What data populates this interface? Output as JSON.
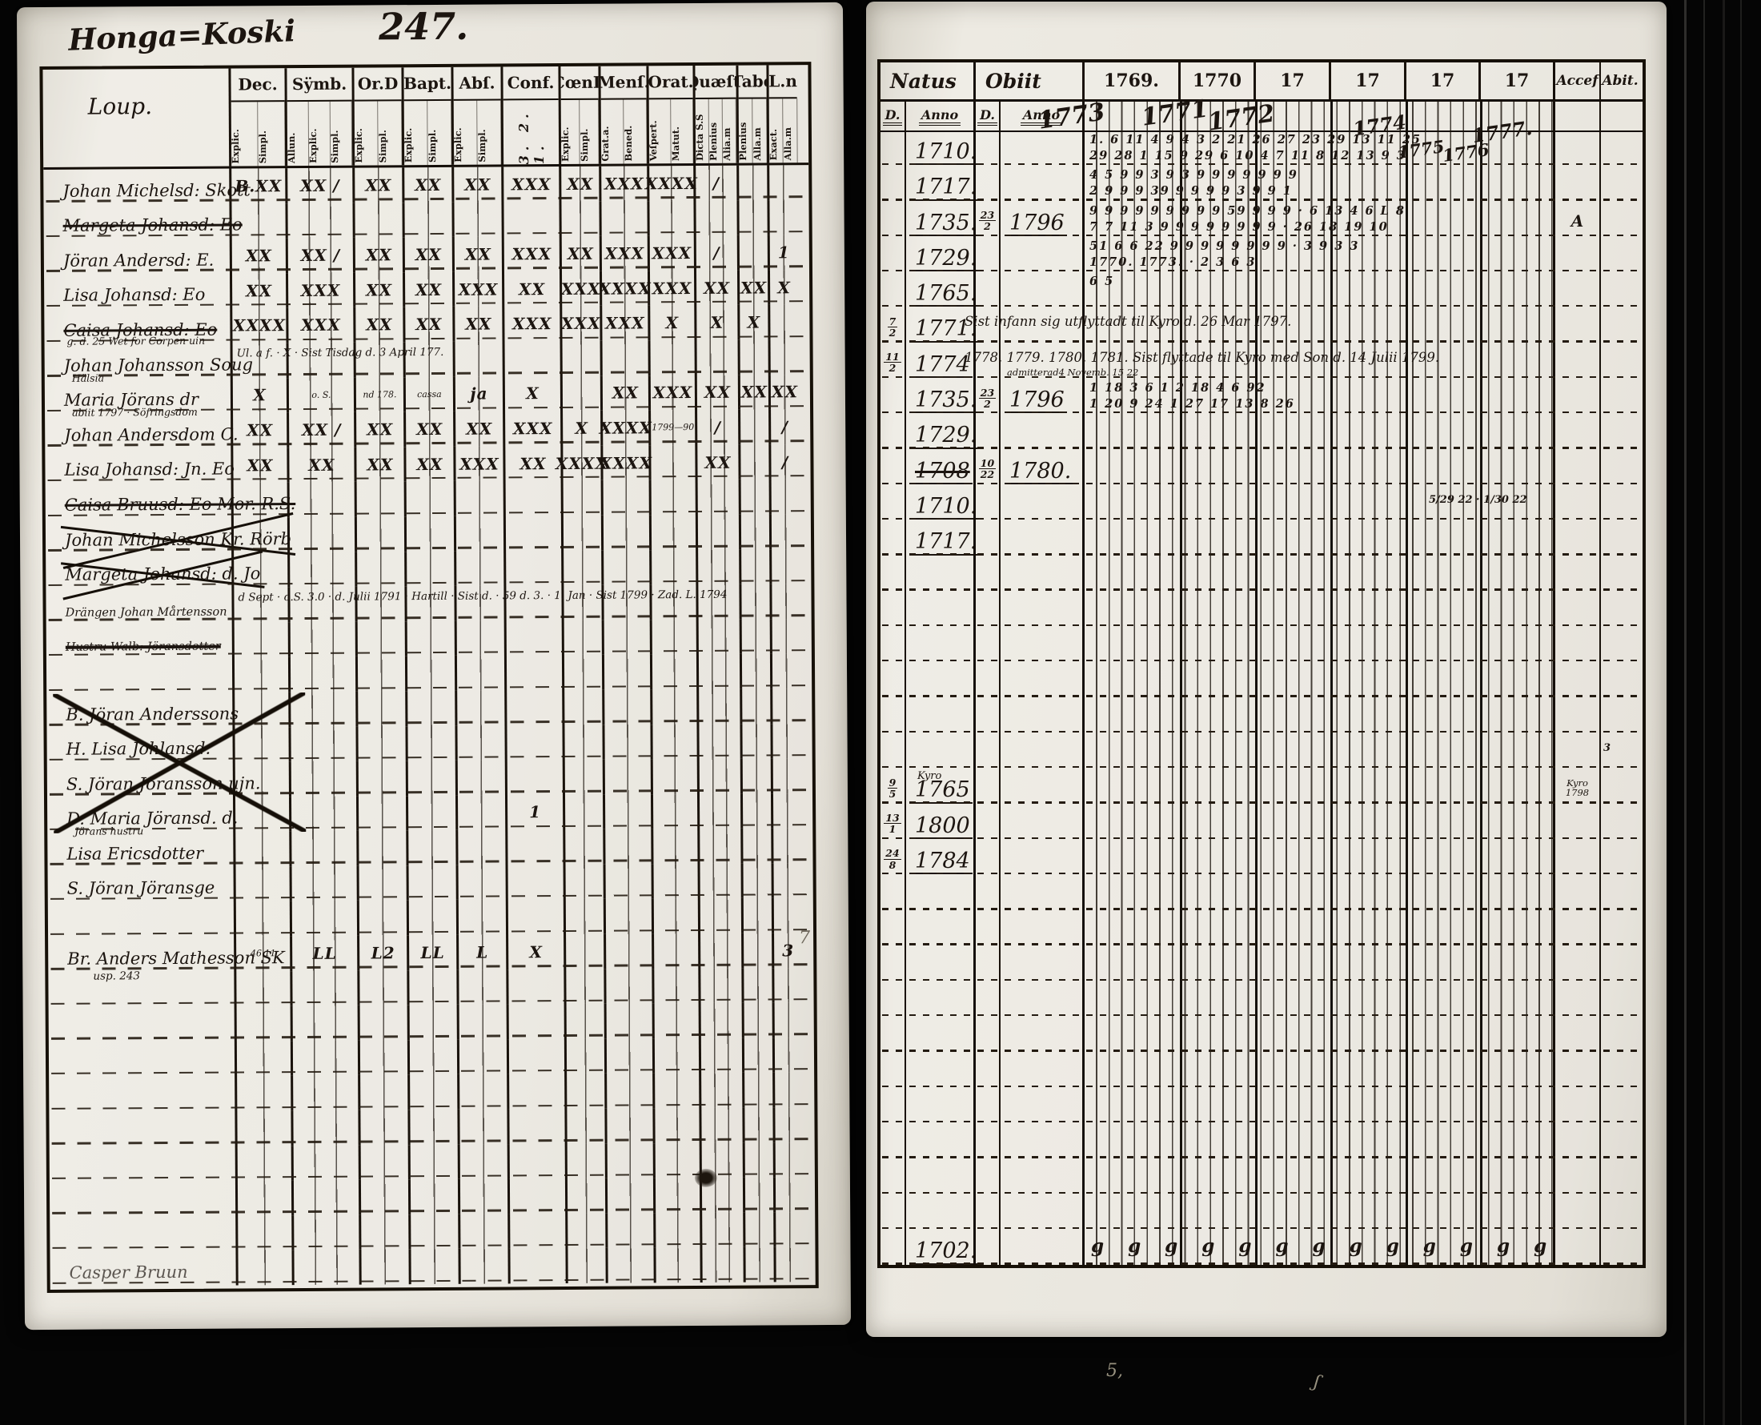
{
  "book": {
    "title": "Honga=Koski",
    "page_number": "247."
  },
  "left_table": {
    "corner_label": "Loup.",
    "columns": [
      {
        "label": "Dec.",
        "subs": [
          "Explic.",
          "Simpl."
        ]
      },
      {
        "label": "Sÿmb.",
        "subs": [
          "Allun.",
          "Explic.",
          "Simpl."
        ]
      },
      {
        "label": "Or.D",
        "subs": [
          "Explic.",
          "Simpl."
        ]
      },
      {
        "label": "Bapt.",
        "subs": [
          "Explic.",
          "Simpl."
        ]
      },
      {
        "label": "Abſ.",
        "subs": [
          "Explic.",
          "Simpl."
        ]
      },
      {
        "label": "Conf.",
        "subs": [],
        "nums": "3. 2. 1."
      },
      {
        "label": "CœnD",
        "subs": [
          "Explic.",
          "Simpl."
        ]
      },
      {
        "label": "Menſ.",
        "subs": [
          "Grat.a.",
          "Bened."
        ]
      },
      {
        "label": "Orat.",
        "subs": [
          "Veſpert.",
          "Matut."
        ]
      },
      {
        "label": "Quæſt.",
        "subs": [
          "Dicta S.S",
          "Plenius",
          "Alia.m"
        ]
      },
      {
        "label": "Tabe",
        "subs": [
          "Plenius",
          "Alla.m"
        ]
      },
      {
        "label": "L.n",
        "subs": [
          "Exact.",
          "Alla.m"
        ]
      }
    ],
    "rows": [
      {
        "name": "Johan Michelsd: Skott",
        "marks": [
          "B.XX",
          "XX /",
          "XX",
          "XX",
          "XX",
          "XXX",
          "XX",
          "XXX",
          "XXXX",
          "/",
          "",
          ""
        ]
      },
      {
        "name": "Margeta Johansd: Eo",
        "struck": true
      },
      {
        "name": "Jöran Andersd: E.",
        "marks": [
          "XX",
          "XX /",
          "XX",
          "XX",
          "XX",
          "XXX",
          "XX",
          "XXX",
          "XXX",
          "/",
          "",
          "1"
        ]
      },
      {
        "name": "Lisa Johansd: Eo",
        "marks": [
          "XX",
          "XXX",
          "XX",
          "XX",
          "XXX",
          "XX",
          "XXX",
          "XXXX",
          "XXX",
          "XX",
          "XX",
          "X"
        ]
      },
      {
        "name": "Caisa Johansd: Eo",
        "struck": true,
        "marks": [
          "XXXX",
          "XXX",
          "XX",
          "XX",
          "XX",
          "XXX",
          "XXX",
          "XXX",
          "X",
          "X",
          "X",
          ""
        ]
      },
      {
        "name": "Johan Johansson Soug",
        "prew": "g. d. 25 Wet for Corpen uin",
        "lnote": "Ul. a f.  ·  X  ·  Sist Tisdag d. 3 April 177."
      },
      {
        "name": "Maria Jörans dr",
        "pre": "Hälsia",
        "marks": [
          "X",
          "o. S.",
          "nd 178.",
          "cassa",
          "ja",
          "X",
          "",
          "XX",
          "XXX",
          "XX",
          "XX",
          "XX"
        ]
      },
      {
        "name": "Johan Andersdom C.",
        "pre": "abiit 1797 · Söfringsdom",
        "marks": [
          "XX",
          "XX /",
          "XX",
          "XX",
          "XX",
          "XXX",
          "X",
          "XXXX",
          "1799—90",
          "/",
          "",
          "/"
        ]
      },
      {
        "name": "Lisa Johansd: Jn. Eo",
        "marks": [
          "XX",
          "XX",
          "XX",
          "XX",
          "XXX",
          "XX",
          "XXXX",
          "XXXX",
          "",
          "XX",
          "",
          "/"
        ]
      },
      {
        "name": "Caisa Bruusd: Eo Mor. R.S.",
        "struck": true
      },
      {
        "name": "Johan Michelsson Kr. Rörb",
        "xed": true
      },
      {
        "name": "Margeta Johansd: d. Jo",
        "xed": true
      },
      {
        "name": "Drängen Johan Mårtensson",
        "small": true,
        "lnote": "d Sept · o.S. 3.0 · d. Julii 1791 · Hartill · Sist d. · 59 d. 3. · 1. Jan · Sist 1799 · Zad. L. 1794"
      },
      {
        "name": "Hustru Walb: Jöransdotter",
        "small": true,
        "struck2": true
      },
      {
        "name": ""
      },
      {
        "name": "B. Jöran Anderssons"
      },
      {
        "name": "H. Lisa Johlansd."
      },
      {
        "name": "S. Jöran Jöransson ujn."
      },
      {
        "name": "D. Maria Jöransd. d.",
        "marks": [
          "",
          "",
          "",
          "",
          "",
          "1",
          "",
          "",
          "",
          "",
          "",
          ""
        ]
      },
      {
        "name": "Lisa Ericsdotter",
        "pre": "Jörans hustru"
      },
      {
        "name": "S. Jöran Jöransge"
      },
      {
        "name": ""
      },
      {
        "name": "Br. Anders Mathesson SK",
        "sub": "usp. 243",
        "marks": [
          "46.11",
          "LL",
          "L2",
          "LL",
          "L",
          "X",
          "",
          "",
          "",
          "",
          "",
          "3"
        ]
      },
      {
        "name": ""
      },
      {
        "name": ""
      },
      {
        "name": ""
      },
      {
        "name": ""
      },
      {
        "name": ""
      },
      {
        "name": ""
      },
      {
        "name": ""
      },
      {
        "name": ""
      },
      {
        "name": "Casper Bruun",
        "faint": true
      }
    ]
  },
  "right_table": {
    "natus_label": "Natus",
    "obiit_label": "Obiit",
    "d_label": "D.",
    "anno_label": "Anno",
    "accef_label": "Accef",
    "abit_label": "Abit.",
    "year_columns": [
      "1769.",
      "1770",
      "17",
      "17",
      "17",
      "17"
    ],
    "overlays": [
      "1773",
      "1771",
      "1772",
      "1774",
      "1775",
      "1776",
      "1777."
    ],
    "rows": [
      {
        "anno": "1710.",
        "top": "1. 6 11 4 9 4 3 2 21 26 27 23 29 13 11 25",
        "bot": "29 28 1 15 9 29 6 10 4 7 11 8 12 13 9 3"
      },
      {
        "anno": "1717.",
        "top": "4 5 9 9 3 9 3 9 9 9 9 9 9 9",
        "bot": "2 9 9 9 39 9 9 9 9 3 9 9 1"
      },
      {
        "anno": "1735.",
        "od": "23/2",
        "oanno": "1796",
        "top": "9 9 9 9 9 9 9 9 9 59 9 9 9 · 6 13 4 6 L 8",
        "bot": "7 7 11 3 9 9 9 9 9 9 9 9 · 26 18 19 10",
        "acc": "A"
      },
      {
        "anno": "1729.",
        "top": "51 6 6 22 9 9 9 9 9 9 9 9 · 3 9 3 3",
        "bot": "1770. 1773. · 2 3 6 3"
      },
      {
        "anno": "1765.",
        "top": "6 5"
      },
      {
        "d": "7/2",
        "anno": "1771.",
        "note": "Sist infann sig utflyttadt til Kyro d. 26 Mar 1797."
      },
      {
        "d": "11/2",
        "anno": "1774",
        "od2": "admitterad|4 Novemb. 15 22",
        "note": "1778. 1779. 1780. 1781.  Sist flyttade til Kyro med Son d. 14 Julii 1799."
      },
      {
        "anno": "1735.",
        "od": "23/2",
        "oanno": "1796",
        "top": "1 18 3 6 1 2 18 4 6 92",
        "bot": "1 20 9 24 1 27 17 13 8 26"
      },
      {
        "anno": "1729."
      },
      {
        "anno": "1708",
        "struck": true,
        "od": "10/22",
        "oanno": "1780."
      },
      {
        "anno": "1710.",
        "mid": "5/29 22 · 1/30 22"
      },
      {
        "anno": "1717."
      },
      {},
      {},
      {},
      {},
      {},
      {
        "mid": "3"
      },
      {
        "d": "9/5",
        "pre": "Kyro",
        "anno": "1765",
        "acc2": "Kyro|1798"
      },
      {
        "d": "13/1",
        "anno": "1800"
      },
      {
        "d": "24/8",
        "anno": "1784"
      },
      {},
      {},
      {},
      {},
      {},
      {},
      {},
      {},
      {},
      {},
      {
        "anno": "1702.",
        "gs": "g g g g  g g g  g g g  g g  g g g  g g g  g g"
      }
    ]
  },
  "margin_marks": {
    "bottom_left": "5,",
    "bottom_squiggle": "ʃ",
    "pencil_seven": "7"
  }
}
